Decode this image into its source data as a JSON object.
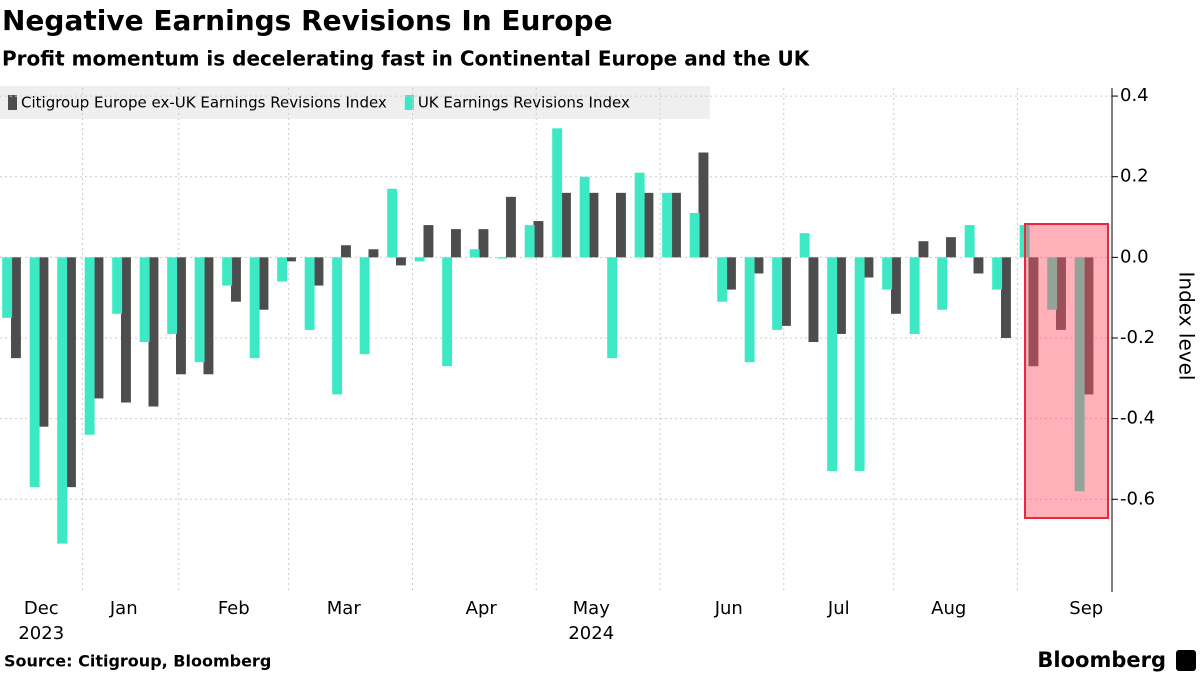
{
  "chart_data": {
    "type": "bar",
    "title": "Negative Earnings Revisions In Europe",
    "subtitle": "Profit momentum is decelerating fast in Continental Europe and the UK",
    "y_label": "Index level",
    "source": "Source: Citigroup, Bloomberg",
    "brand": "Bloomberg",
    "categories": [
      null,
      "Dec",
      null,
      null,
      "Jan",
      null,
      null,
      null,
      "Feb",
      null,
      null,
      null,
      "Mar",
      null,
      null,
      null,
      null,
      "Apr",
      null,
      null,
      null,
      "May",
      null,
      null,
      null,
      null,
      "Jun",
      null,
      null,
      null,
      "Jul",
      null,
      null,
      null,
      "Aug",
      null,
      null,
      null,
      null,
      "Sep"
    ],
    "years": [
      null,
      "2023",
      null,
      null,
      null,
      null,
      null,
      null,
      null,
      null,
      null,
      null,
      null,
      null,
      null,
      null,
      null,
      null,
      null,
      null,
      null,
      "2024",
      null,
      null,
      null,
      null,
      null,
      null,
      null,
      null,
      null,
      null,
      null,
      null,
      null,
      null,
      null,
      null,
      null,
      null
    ],
    "series": [
      {
        "name": "Citigroup Europe ex-UK Earnings Revisions Index",
        "color": "#4d4d4d",
        "values": [
          -0.25,
          -0.42,
          -0.57,
          -0.35,
          -0.36,
          -0.37,
          -0.29,
          -0.29,
          -0.11,
          -0.13,
          -0.01,
          -0.07,
          0.03,
          0.02,
          -0.02,
          0.08,
          0.07,
          0.07,
          0.15,
          0.09,
          0.16,
          0.16,
          0.16,
          0.16,
          0.16,
          0.26,
          -0.08,
          -0.04,
          -0.17,
          -0.21,
          -0.19,
          -0.05,
          -0.14,
          0.04,
          0.05,
          -0.04,
          -0.2,
          -0.27,
          -0.18,
          -0.34
        ]
      },
      {
        "name": "UK Earnings Revisions Index",
        "color": "#3de8c4",
        "values": [
          -0.15,
          -0.57,
          -0.71,
          -0.44,
          -0.14,
          -0.21,
          -0.19,
          -0.26,
          -0.07,
          -0.25,
          -0.06,
          -0.18,
          -0.34,
          -0.24,
          0.17,
          -0.01,
          -0.27,
          0.02,
          -0.003,
          0.08,
          0.32,
          0.2,
          -0.25,
          0.21,
          0.16,
          0.11,
          -0.11,
          -0.26,
          -0.18,
          0.06,
          -0.53,
          -0.53,
          -0.08,
          -0.19,
          -0.13,
          0.08,
          -0.08,
          0.08,
          -0.13,
          -0.58
        ]
      }
    ],
    "ylim": [
      -0.83,
      0.42
    ],
    "yticks": [
      0.4,
      0.2,
      {
        "value": 0,
        "label": "0.0"
      },
      -0.2,
      -0.4,
      -0.6
    ],
    "grid": true
  }
}
